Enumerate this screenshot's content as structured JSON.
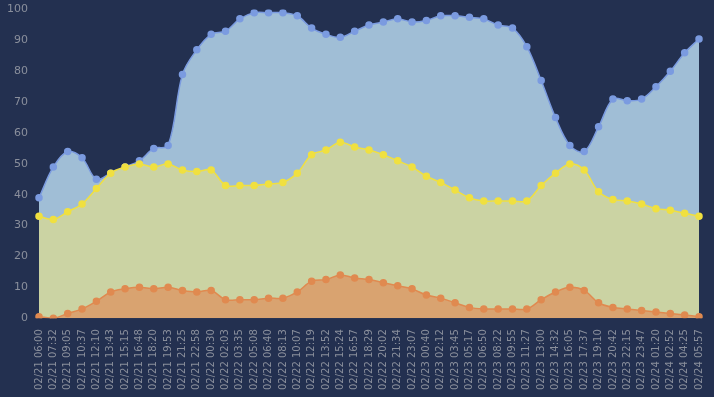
{
  "chart_data": {
    "type": "line",
    "categories": [
      "02/21 06:00",
      "02/21 07:32",
      "02/21 09:05",
      "02/21 10:37",
      "02/21 12:10",
      "02/21 13:43",
      "02/21 15:15",
      "02/21 16:48",
      "02/21 18:20",
      "02/21 19:53",
      "02/21 21:25",
      "02/21 22:58",
      "02/22 00:30",
      "02/22 02:03",
      "02/22 03:35",
      "02/22 05:08",
      "02/22 06:40",
      "02/22 08:13",
      "02/22 10:07",
      "02/22 12:19",
      "02/22 13:52",
      "02/22 15:24",
      "02/22 16:57",
      "02/22 18:29",
      "02/22 20:02",
      "02/22 21:34",
      "02/22 23:07",
      "02/23 00:40",
      "02/23 02:12",
      "02/23 03:45",
      "02/23 05:17",
      "02/23 06:50",
      "02/23 08:22",
      "02/23 09:55",
      "02/23 11:27",
      "02/23 13:00",
      "02/23 14:32",
      "02/23 16:05",
      "02/23 17:37",
      "02/23 19:10",
      "02/23 20:42",
      "02/23 22:15",
      "02/23 23:47",
      "02/24 01:20",
      "02/24 02:52",
      "02/24 04:25",
      "02/24 05:57"
    ],
    "series": [
      {
        "color": "#e08a50",
        "values": [
          0.5,
          0,
          1.5,
          3,
          5.5,
          8.5,
          9.5,
          10,
          9.5,
          10,
          9,
          8.5,
          9,
          6,
          6,
          6,
          6.5,
          6.5,
          8.5,
          12,
          12.5,
          14,
          13,
          12.5,
          11.5,
          10.5,
          9.5,
          7.5,
          6.5,
          5,
          3.5,
          3,
          3,
          3,
          3,
          6,
          8.5,
          10,
          9,
          5,
          3.5,
          3,
          2.5,
          2,
          1.5,
          1,
          0.5
        ]
      },
      {
        "color": "#f0e040",
        "values": [
          33,
          32,
          34.5,
          37,
          42,
          47,
          49,
          50,
          49,
          50,
          48,
          47.5,
          48,
          43,
          43,
          43,
          43.5,
          44,
          47,
          53,
          54.5,
          57,
          55.5,
          54.5,
          53,
          51,
          49,
          46,
          44,
          41.5,
          39,
          38,
          38,
          38,
          38,
          43,
          47,
          50,
          48,
          41,
          38.5,
          38,
          37,
          35.5,
          35,
          34,
          33
        ]
      },
      {
        "color": "#7b9be0",
        "values": [
          39,
          49,
          54,
          52,
          45,
          47,
          49,
          51,
          55,
          56,
          79,
          87,
          92,
          93,
          97,
          99,
          99,
          99,
          98,
          94,
          92,
          91,
          93,
          95,
          96,
          97,
          96,
          96.5,
          98,
          98,
          97.5,
          97,
          95,
          94,
          88,
          77,
          65,
          56,
          54,
          62,
          71,
          70.5,
          71,
          75,
          80,
          86,
          90.5
        ]
      }
    ],
    "ylim": [
      0,
      100
    ],
    "yticks": [
      0,
      10,
      20,
      30,
      40,
      50,
      60,
      70,
      80,
      90,
      100
    ],
    "grid": false,
    "marker": "circle"
  }
}
